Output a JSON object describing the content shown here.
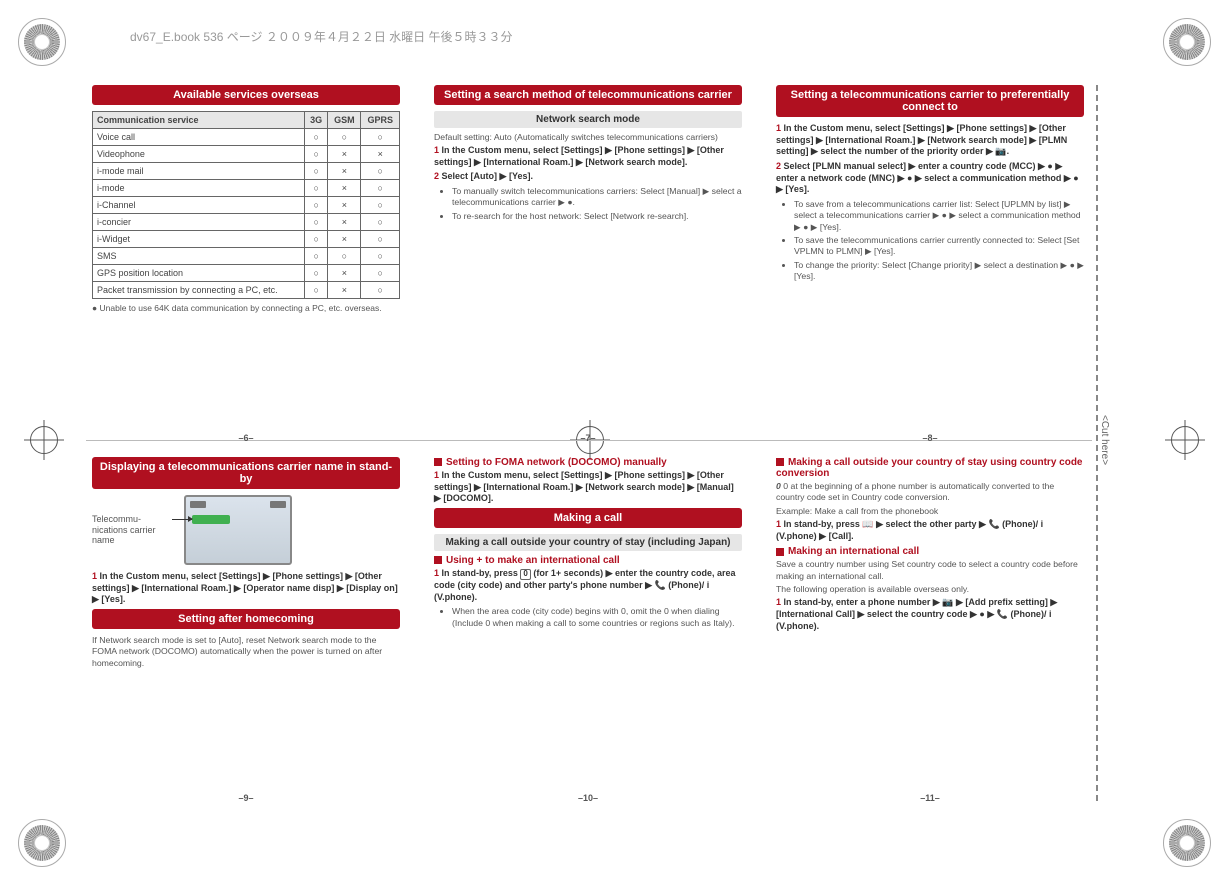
{
  "page_header": "dv67_E.book  536 ページ  ２００９年４月２２日  水曜日  午後５時３３分",
  "cut_here": "<Cut here>",
  "cross_positions": {
    "present": true
  },
  "symbols": {
    "yes": "○",
    "no": "×",
    "arrow": "▶",
    "dot_btn": "●"
  },
  "page_labels": {
    "p6": "–6–",
    "p7": "–7–",
    "p8": "–8–",
    "p9": "–9–",
    "p10": "–10–",
    "p11": "–11–"
  },
  "panel6": {
    "banner": "Available services overseas",
    "table": {
      "head": [
        "Communication service",
        "3G",
        "GSM",
        "GPRS"
      ],
      "rows": [
        [
          "Voice call",
          "○",
          "○",
          "○"
        ],
        [
          "Videophone",
          "○",
          "×",
          "×"
        ],
        [
          "i-mode mail",
          "○",
          "×",
          "○"
        ],
        [
          "i-mode",
          "○",
          "×",
          "○"
        ],
        [
          "i-Channel",
          "○",
          "×",
          "○"
        ],
        [
          "i-concier",
          "○",
          "×",
          "○"
        ],
        [
          "i-Widget",
          "○",
          "×",
          "○"
        ],
        [
          "SMS",
          "○",
          "○",
          "○"
        ],
        [
          "GPS position location",
          "○",
          "×",
          "○"
        ],
        [
          "Packet transmission by connecting a PC, etc.",
          "○",
          "×",
          "○"
        ]
      ]
    },
    "note": "● Unable to use 64K data communication by connecting a PC, etc. overseas."
  },
  "panel7": {
    "banner": "Setting a search method of telecommunications carrier",
    "sub": "Network search mode",
    "default": "Default setting: Auto (Automatically switches telecommunications carriers)",
    "step1": "In the Custom menu, select [Settings] ▶ [Phone settings] ▶ [Other settings] ▶ [International Roam.] ▶ [Network search mode].",
    "step2": "Select [Auto] ▶ [Yes].",
    "bul1": "To manually switch telecommunications carriers: Select [Manual] ▶ select a telecommunications carrier ▶ ●.",
    "bul2": "To re-search for the host network: Select [Network re-search]."
  },
  "panel8": {
    "banner": "Setting a telecommunications carrier to preferentially connect to",
    "step1": "In the Custom menu, select [Settings] ▶ [Phone settings] ▶ [Other settings] ▶ [International Roam.] ▶ [Network search mode] ▶ [PLMN setting] ▶ select the number of the priority order ▶ 📷.",
    "step2": "Select [PLMN manual select] ▶ enter a country code (MCC) ▶ ● ▶ enter a network code (MNC) ▶ ● ▶ select a communication method ▶ ● ▶ [Yes].",
    "bul1": "To save from a telecommunications carrier list: Select [UPLMN by list] ▶ select a telecommunications carrier ▶ ● ▶ select a communication method ▶ ● ▶ [Yes].",
    "bul2": "To save the telecommunications carrier currently connected to: Select [Set VPLMN to PLMN] ▶ [Yes].",
    "bul3": "To change the priority: Select [Change priority] ▶ select a destination ▶ ● ▶ [Yes]."
  },
  "panel9": {
    "banner": "Displaying a telecommunications carrier name in stand-by",
    "shot_label": "Telecommu-nications carrier name",
    "step1": "In the Custom menu, select [Settings] ▶ [Phone settings] ▶ [Other settings] ▶ [International Roam.] ▶ [Operator name disp] ▶ [Display on] ▶ [Yes].",
    "banner2": "Setting after homecoming",
    "after_text": "If Network search mode is set to [Auto], reset Network search mode to the FOMA network (DOCOMO) automatically when the power is turned on after homecoming."
  },
  "panel10": {
    "subhead1": "Setting to FOMA network (DOCOMO) manually",
    "step1": "In the Custom menu, select [Settings] ▶ [Phone settings] ▶ [Other settings] ▶ [International Roam.] ▶ [Network search mode] ▶ [Manual] ▶ [DOCOMO].",
    "banner": "Making a call",
    "sub": "Making a call outside your country of stay (including Japan)",
    "subhead2": "Using + to make an international call",
    "step2_a": "In stand-by, press ",
    "step2_key": "0",
    "step2_b": " (for 1+ seconds) ▶ enter the country code, area code (city code) and other party's phone number ▶ 📞 (Phone)/ i  (V.phone).",
    "bul1": "When the area code (city code) begins with 0, omit the 0 when dialing (Include 0 when making a call to some countries or regions such as Italy)."
  },
  "panel11": {
    "subhead1": "Making a call outside your country of stay using country code conversion",
    "intro1": "0 at the beginning of a phone number is automatically converted to the country code set in Country code conversion.",
    "intro2": "Example: Make a call from the phonebook",
    "step1": "In stand-by, press 📖 ▶ select the other party ▶ 📞 (Phone)/ i  (V.phone) ▶ [Call].",
    "subhead2": "Making an international call",
    "intro3": "Save a country number using Set country code to select a country code before making an international call.",
    "intro4": "The following operation is available overseas only.",
    "step2": "In stand-by, enter a phone number ▶ 📷 ▶ [Add prefix setting] ▶ [International Call] ▶ select the country code ▶ ● ▶ 📞 (Phone)/ i  (V.phone)."
  }
}
